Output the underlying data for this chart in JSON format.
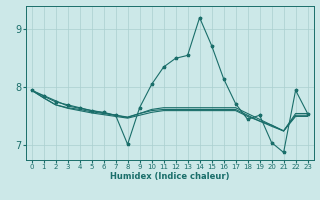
{
  "xlabel": "Humidex (Indice chaleur)",
  "bg_color": "#cce8e8",
  "grid_color": "#aacfcf",
  "line_color": "#1a6e6a",
  "xlim": [
    -0.5,
    23.5
  ],
  "ylim": [
    6.75,
    9.4
  ],
  "yticks": [
    7,
    8,
    9
  ],
  "xticks": [
    0,
    1,
    2,
    3,
    4,
    5,
    6,
    7,
    8,
    9,
    10,
    11,
    12,
    13,
    14,
    15,
    16,
    17,
    18,
    19,
    20,
    21,
    22,
    23
  ],
  "series1_x": [
    0,
    1,
    2,
    3,
    4,
    5,
    6,
    7,
    8,
    9,
    10,
    11,
    12,
    13,
    14,
    15,
    16,
    17,
    18,
    19,
    20,
    21,
    22,
    23
  ],
  "series1_y": [
    7.95,
    7.85,
    7.75,
    7.7,
    7.65,
    7.6,
    7.57,
    7.52,
    7.02,
    7.65,
    8.05,
    8.35,
    8.5,
    8.55,
    9.2,
    8.72,
    8.15,
    7.72,
    7.45,
    7.52,
    7.05,
    6.88,
    7.95,
    7.55
  ],
  "series2_x": [
    0,
    1,
    2,
    3,
    4,
    5,
    6,
    7,
    8,
    9,
    10,
    11,
    12,
    13,
    14,
    15,
    16,
    17,
    18,
    19,
    20,
    21,
    22,
    23
  ],
  "series2_y": [
    7.95,
    7.86,
    7.77,
    7.68,
    7.64,
    7.6,
    7.56,
    7.52,
    7.48,
    7.55,
    7.62,
    7.65,
    7.65,
    7.65,
    7.65,
    7.65,
    7.65,
    7.65,
    7.55,
    7.45,
    7.35,
    7.25,
    7.55,
    7.55
  ],
  "series3_x": [
    0,
    1,
    2,
    3,
    4,
    5,
    6,
    7,
    8,
    9,
    10,
    11,
    12,
    13,
    14,
    15,
    16,
    17,
    18,
    19,
    20,
    21,
    22,
    23
  ],
  "series3_y": [
    7.95,
    7.82,
    7.7,
    7.65,
    7.62,
    7.58,
    7.55,
    7.52,
    7.49,
    7.55,
    7.6,
    7.62,
    7.62,
    7.62,
    7.62,
    7.62,
    7.62,
    7.62,
    7.52,
    7.42,
    7.35,
    7.25,
    7.52,
    7.52
  ],
  "series4_x": [
    0,
    1,
    2,
    3,
    4,
    5,
    6,
    7,
    8,
    9,
    10,
    11,
    12,
    13,
    14,
    15,
    16,
    17,
    18,
    19,
    20,
    21,
    22,
    23
  ],
  "series4_y": [
    7.95,
    7.82,
    7.7,
    7.64,
    7.6,
    7.56,
    7.53,
    7.5,
    7.47,
    7.52,
    7.57,
    7.6,
    7.6,
    7.6,
    7.6,
    7.6,
    7.6,
    7.6,
    7.5,
    7.42,
    7.33,
    7.25,
    7.5,
    7.5
  ]
}
